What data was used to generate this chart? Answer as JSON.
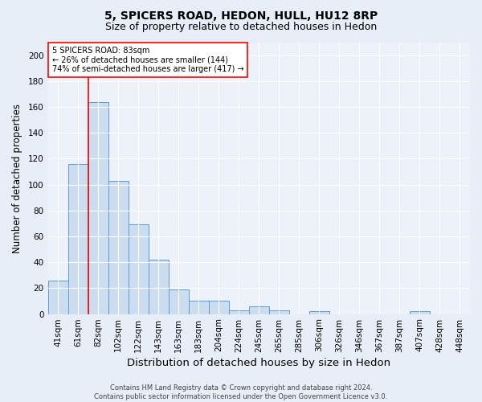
{
  "title1": "5, SPICERS ROAD, HEDON, HULL, HU12 8RP",
  "title2": "Size of property relative to detached houses in Hedon",
  "xlabel": "Distribution of detached houses by size in Hedon",
  "ylabel": "Number of detached properties",
  "bar_labels": [
    "41sqm",
    "61sqm",
    "82sqm",
    "102sqm",
    "122sqm",
    "143sqm",
    "163sqm",
    "183sqm",
    "204sqm",
    "224sqm",
    "245sqm",
    "265sqm",
    "285sqm",
    "306sqm",
    "326sqm",
    "346sqm",
    "367sqm",
    "387sqm",
    "407sqm",
    "428sqm",
    "448sqm"
  ],
  "bar_values": [
    26,
    116,
    164,
    103,
    69,
    42,
    19,
    10,
    10,
    3,
    6,
    3,
    0,
    2,
    0,
    0,
    0,
    0,
    2,
    0,
    0
  ],
  "bar_color": "#ccddf0",
  "bar_edge_color": "#5b9bd5",
  "vline_index": 2,
  "vline_color": "red",
  "annotation_line1": "5 SPICERS ROAD: 83sqm",
  "annotation_line2": "← 26% of detached houses are smaller (144)",
  "annotation_line3": "74% of semi-detached houses are larger (417) →",
  "annotation_box_color": "white",
  "annotation_box_edge_color": "red",
  "ylim": [
    0,
    210
  ],
  "yticks": [
    0,
    20,
    40,
    60,
    80,
    100,
    120,
    140,
    160,
    180,
    200
  ],
  "bg_color": "#e8eef8",
  "plot_bg_color": "#edf2fa",
  "footer": "Contains HM Land Registry data © Crown copyright and database right 2024.\nContains public sector information licensed under the Open Government Licence v3.0.",
  "title1_fontsize": 10,
  "title2_fontsize": 9,
  "xlabel_fontsize": 9.5,
  "ylabel_fontsize": 8.5,
  "tick_fontsize": 7.5,
  "footer_fontsize": 6,
  "annot_fontsize": 7
}
